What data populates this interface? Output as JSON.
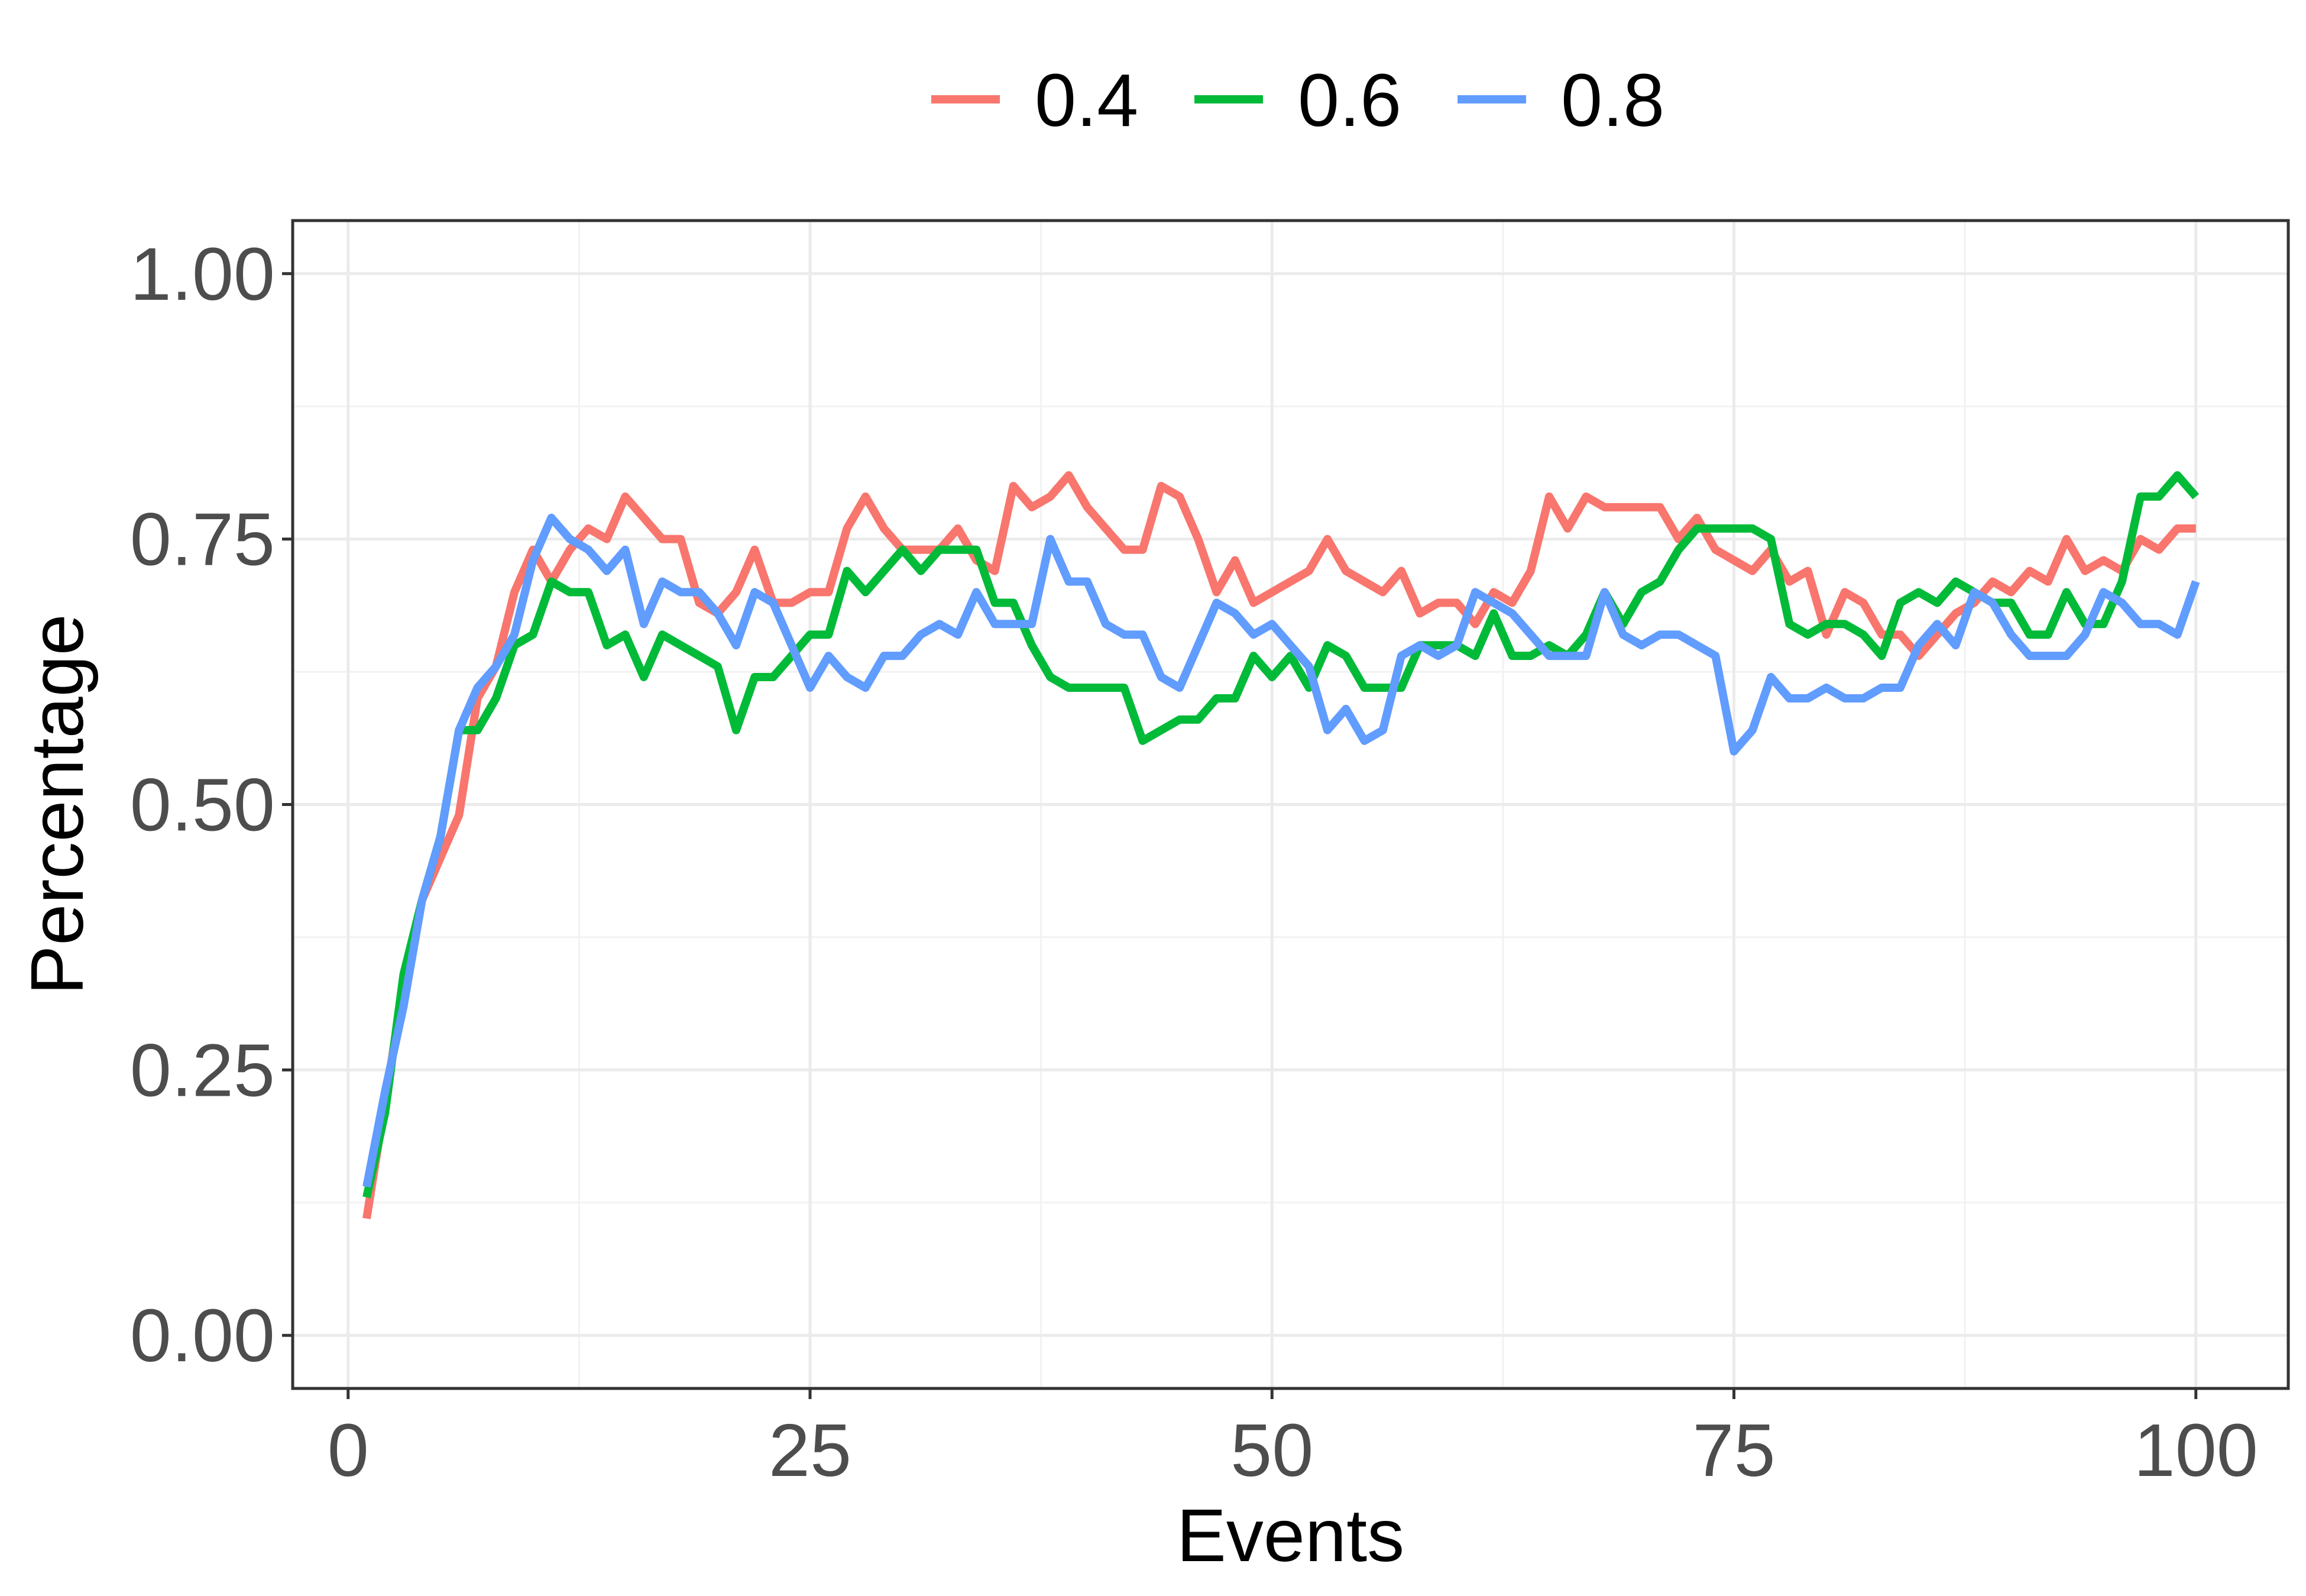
{
  "chart_data": {
    "type": "line",
    "xlabel": "Events",
    "ylabel": "Percentage",
    "xlim": [
      -3,
      105
    ],
    "ylim": [
      -0.05,
      1.05
    ],
    "x_ticks": [
      0,
      25,
      50,
      75,
      100
    ],
    "x_tick_labels": [
      "0",
      "25",
      "50",
      "75",
      "100"
    ],
    "y_ticks": [
      0,
      0.25,
      0.5,
      0.75,
      1
    ],
    "y_tick_labels": [
      "0.00",
      "0.25",
      "0.50",
      "0.75",
      "1.00"
    ],
    "x_minor": [
      12.5,
      37.5,
      62.5,
      87.5
    ],
    "y_minor": [
      0.125,
      0.375,
      0.625,
      0.875
    ],
    "grid": true,
    "legend_position": "top",
    "series": [
      {
        "name": "0.4",
        "color": "#F8766D",
        "x_start": 1,
        "values": [
          0.11,
          0.22,
          0.33,
          0.41,
          0.45,
          0.49,
          0.6,
          0.63,
          0.7,
          0.74,
          0.71,
          0.74,
          0.76,
          0.75,
          0.79,
          0.77,
          0.75,
          0.75,
          0.69,
          0.68,
          0.7,
          0.74,
          0.69,
          0.69,
          0.7,
          0.7,
          0.76,
          0.79,
          0.76,
          0.74,
          0.74,
          0.74,
          0.76,
          0.73,
          0.72,
          0.8,
          0.78,
          0.79,
          0.81,
          0.78,
          0.76,
          0.74,
          0.74,
          0.8,
          0.79,
          0.75,
          0.7,
          0.73,
          0.69,
          0.7,
          0.71,
          0.72,
          0.75,
          0.72,
          0.71,
          0.7,
          0.72,
          0.68,
          0.69,
          0.69,
          0.67,
          0.7,
          0.69,
          0.72,
          0.79,
          0.76,
          0.79,
          0.78,
          0.78,
          0.78,
          0.78,
          0.75,
          0.77,
          0.74,
          0.73,
          0.72,
          0.74,
          0.71,
          0.72,
          0.66,
          0.7,
          0.69,
          0.66,
          0.66,
          0.64,
          0.66,
          0.68,
          0.69,
          0.71,
          0.7,
          0.72,
          0.71,
          0.75,
          0.72,
          0.73,
          0.72,
          0.75,
          0.74,
          0.76,
          0.76
        ]
      },
      {
        "name": "0.6",
        "color": "#00BA38",
        "x_start": 1,
        "values": [
          0.13,
          0.21,
          0.34,
          0.41,
          0.47,
          0.57,
          0.57,
          0.6,
          0.65,
          0.66,
          0.71,
          0.7,
          0.7,
          0.65,
          0.66,
          0.62,
          0.66,
          0.65,
          0.64,
          0.63,
          0.57,
          0.62,
          0.62,
          0.64,
          0.66,
          0.66,
          0.72,
          0.7,
          0.72,
          0.74,
          0.72,
          0.74,
          0.74,
          0.74,
          0.69,
          0.69,
          0.65,
          0.62,
          0.61,
          0.61,
          0.61,
          0.61,
          0.56,
          0.57,
          0.58,
          0.58,
          0.6,
          0.6,
          0.64,
          0.62,
          0.64,
          0.61,
          0.65,
          0.64,
          0.61,
          0.61,
          0.61,
          0.65,
          0.65,
          0.65,
          0.64,
          0.68,
          0.64,
          0.64,
          0.65,
          0.64,
          0.66,
          0.7,
          0.67,
          0.7,
          0.71,
          0.74,
          0.76,
          0.76,
          0.76,
          0.76,
          0.75,
          0.67,
          0.66,
          0.67,
          0.67,
          0.66,
          0.64,
          0.69,
          0.7,
          0.69,
          0.71,
          0.7,
          0.69,
          0.69,
          0.66,
          0.66,
          0.7,
          0.67,
          0.67,
          0.71,
          0.79,
          0.79,
          0.81,
          0.79
        ]
      },
      {
        "name": "0.8",
        "color": "#619CFF",
        "x_start": 1,
        "values": [
          0.14,
          0.23,
          0.31,
          0.41,
          0.47,
          0.57,
          0.61,
          0.63,
          0.66,
          0.73,
          0.77,
          0.75,
          0.74,
          0.72,
          0.74,
          0.67,
          0.71,
          0.7,
          0.7,
          0.68,
          0.65,
          0.7,
          0.69,
          0.65,
          0.61,
          0.64,
          0.62,
          0.61,
          0.64,
          0.64,
          0.66,
          0.67,
          0.66,
          0.7,
          0.67,
          0.67,
          0.67,
          0.75,
          0.71,
          0.71,
          0.67,
          0.66,
          0.66,
          0.62,
          0.61,
          0.65,
          0.69,
          0.68,
          0.66,
          0.67,
          0.65,
          0.63,
          0.57,
          0.59,
          0.56,
          0.57,
          0.64,
          0.65,
          0.64,
          0.65,
          0.7,
          0.69,
          0.68,
          0.66,
          0.64,
          0.64,
          0.64,
          0.7,
          0.66,
          0.65,
          0.66,
          0.66,
          0.65,
          0.64,
          0.55,
          0.57,
          0.62,
          0.6,
          0.6,
          0.61,
          0.6,
          0.6,
          0.61,
          0.61,
          0.65,
          0.67,
          0.65,
          0.7,
          0.69,
          0.66,
          0.64,
          0.64,
          0.64,
          0.66,
          0.7,
          0.69,
          0.67,
          0.67,
          0.66,
          0.71
        ]
      }
    ]
  }
}
